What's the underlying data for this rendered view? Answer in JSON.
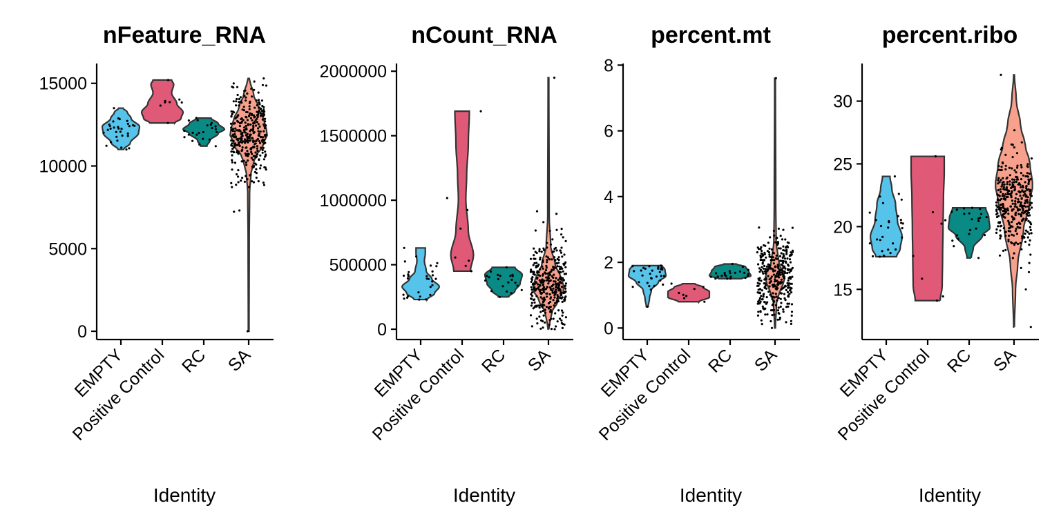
{
  "colors": {
    "EMPTY": "#56C3EB",
    "Positive Control": "#E05A78",
    "RC": "#0A8A84",
    "SA": "#F7A08C"
  },
  "chart_data": [
    {
      "type": "violin",
      "title": "nFeature_RNA",
      "xlabel": "Identity",
      "ylabel": "",
      "categories": [
        "EMPTY",
        "Positive Control",
        "RC",
        "SA"
      ],
      "ylim": [
        -500,
        16200
      ],
      "yticks": [
        0,
        5000,
        10000,
        15000
      ],
      "ytick_labels": [
        "0",
        "5000",
        "10000",
        "15000"
      ],
      "series": [
        {
          "category": "EMPTY",
          "min": 11000,
          "max": 13500,
          "median": 12200,
          "n_points": 30
        },
        {
          "category": "Positive Control",
          "min": 12600,
          "max": 15200,
          "median": 13600,
          "n_points": 8
        },
        {
          "category": "RC",
          "min": 11200,
          "max": 12900,
          "median": 12200,
          "n_points": 22
        },
        {
          "category": "SA",
          "min": 0,
          "max": 15300,
          "median": 11900,
          "n_points": 350
        }
      ]
    },
    {
      "type": "violin",
      "title": "nCount_RNA",
      "xlabel": "Identity",
      "ylabel": "",
      "categories": [
        "EMPTY",
        "Positive Control",
        "RC",
        "SA"
      ],
      "ylim": [
        -80000,
        2060000
      ],
      "yticks": [
        0,
        500000,
        1000000,
        1500000,
        2000000
      ],
      "ytick_labels": [
        "0",
        "500000",
        "1000000",
        "1500000",
        "2000000"
      ],
      "series": [
        {
          "category": "EMPTY",
          "min": 230000,
          "max": 630000,
          "median": 370000,
          "n_points": 30
        },
        {
          "category": "Positive Control",
          "min": 450000,
          "max": 1690000,
          "median": 620000,
          "n_points": 8
        },
        {
          "category": "RC",
          "min": 250000,
          "max": 480000,
          "median": 360000,
          "n_points": 22
        },
        {
          "category": "SA",
          "min": 0,
          "max": 1950000,
          "median": 340000,
          "n_points": 350
        }
      ]
    },
    {
      "type": "violin",
      "title": "percent.mt",
      "xlabel": "Identity",
      "ylabel": "",
      "categories": [
        "EMPTY",
        "Positive Control",
        "RC",
        "SA"
      ],
      "ylim": [
        -0.35,
        8.05
      ],
      "yticks": [
        0,
        2,
        4,
        6,
        8
      ],
      "ytick_labels": [
        "0",
        "2",
        "4",
        "6",
        "8"
      ],
      "series": [
        {
          "category": "EMPTY",
          "min": 0.65,
          "max": 1.9,
          "median": 1.6,
          "n_points": 30
        },
        {
          "category": "Positive Control",
          "min": 0.8,
          "max": 1.35,
          "median": 1.1,
          "n_points": 8
        },
        {
          "category": "RC",
          "min": 1.5,
          "max": 1.95,
          "median": 1.65,
          "n_points": 22
        },
        {
          "category": "SA",
          "min": 0,
          "max": 7.6,
          "median": 1.5,
          "n_points": 350
        }
      ]
    },
    {
      "type": "violin",
      "title": "percent.ribo",
      "xlabel": "Identity",
      "ylabel": "",
      "categories": [
        "EMPTY",
        "Positive Control",
        "RC",
        "SA"
      ],
      "ylim": [
        11.0,
        33.0
      ],
      "yticks": [
        15,
        20,
        25,
        30
      ],
      "ytick_labels": [
        "15",
        "20",
        "25",
        "30"
      ],
      "series": [
        {
          "category": "EMPTY",
          "min": 17.6,
          "max": 24.0,
          "median": 19.5,
          "n_points": 30
        },
        {
          "category": "Positive Control",
          "min": 14.1,
          "max": 25.6,
          "median": 18.0,
          "n_points": 8
        },
        {
          "category": "RC",
          "min": 17.5,
          "max": 21.5,
          "median": 20.3,
          "n_points": 22
        },
        {
          "category": "SA",
          "min": 12.0,
          "max": 32.1,
          "median": 21.8,
          "n_points": 350
        }
      ]
    }
  ]
}
